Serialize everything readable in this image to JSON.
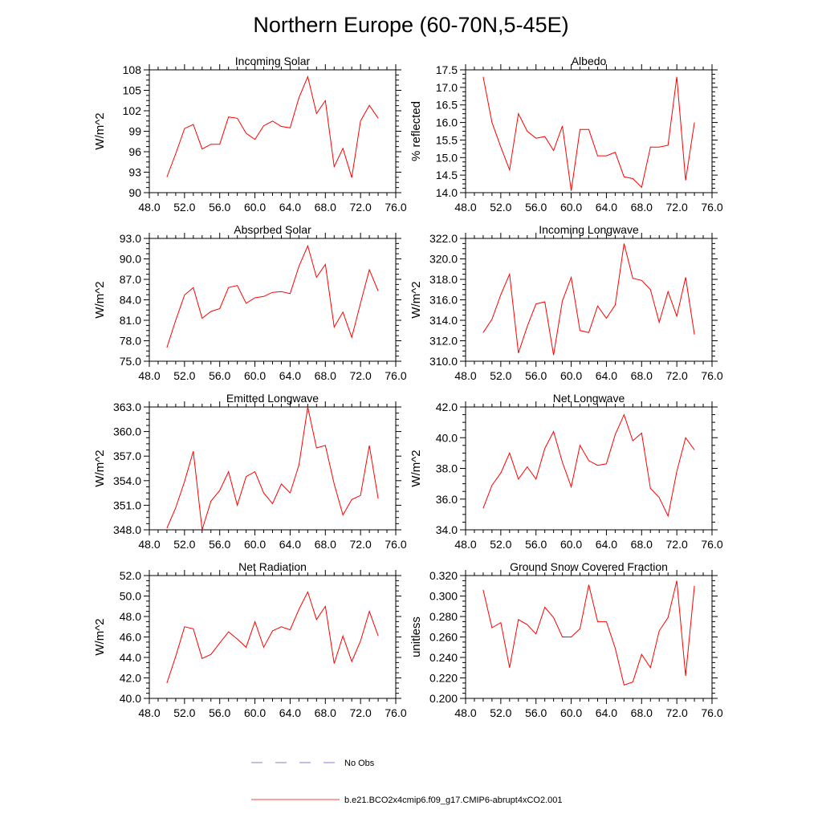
{
  "figure": {
    "title": "Northern Europe (60-70N,5-45E)",
    "line_color": "#ff0000",
    "obs_color": "#5a5ad6"
  },
  "legend": {
    "obs_label": "No Obs",
    "model_label": "b.e21.BCO2x4cmip6.f09_g17.CMIP6-abrupt4xCO2.001"
  },
  "chart_data": [
    {
      "type": "line",
      "title": "Incoming Solar",
      "ylabel": "W/m^2",
      "xlim": [
        48,
        76
      ],
      "ylim": [
        90,
        108
      ],
      "xticks": [
        48,
        52,
        56,
        60,
        64,
        68,
        72,
        76
      ],
      "xtick_labels": [
        "48.0",
        "52.0",
        "56.0",
        "60.0",
        "64.0",
        "68.0",
        "72.0",
        "76.0"
      ],
      "yticks": [
        90,
        93,
        96,
        99,
        102,
        105,
        108
      ],
      "ytick_labels": [
        "90",
        "93",
        "96",
        "99",
        "102",
        "105",
        "108"
      ],
      "x": [
        50,
        51,
        52,
        53,
        54,
        55,
        56,
        57,
        58,
        59,
        60,
        61,
        62,
        63,
        64,
        65,
        66,
        67,
        68,
        69,
        70,
        71,
        72,
        73,
        74
      ],
      "values": [
        92.3,
        95.7,
        99.4,
        100.0,
        96.4,
        97.1,
        97.1,
        101.1,
        100.9,
        98.7,
        97.8,
        99.8,
        100.5,
        99.7,
        99.5,
        103.9,
        107.0,
        101.6,
        103.5,
        93.8,
        96.5,
        92.2,
        100.5,
        102.8,
        100.9
      ]
    },
    {
      "type": "line",
      "title": "Albedo",
      "ylabel": "% reflected",
      "xlim": [
        48,
        76
      ],
      "ylim": [
        14.0,
        17.5
      ],
      "xticks": [
        48,
        52,
        56,
        60,
        64,
        68,
        72,
        76
      ],
      "xtick_labels": [
        "48.0",
        "52.0",
        "56.0",
        "60.0",
        "64.0",
        "68.0",
        "72.0",
        "76.0"
      ],
      "yticks": [
        14.0,
        14.5,
        15.0,
        15.5,
        16.0,
        16.5,
        17.0,
        17.5
      ],
      "ytick_labels": [
        "14.0",
        "14.5",
        "15.0",
        "15.5",
        "16.0",
        "16.5",
        "17.0",
        "17.5"
      ],
      "x": [
        50,
        51,
        52,
        53,
        54,
        55,
        56,
        57,
        58,
        59,
        60,
        61,
        62,
        63,
        64,
        65,
        66,
        67,
        68,
        69,
        70,
        71,
        72,
        73,
        74
      ],
      "values": [
        17.3,
        16.0,
        15.3,
        14.65,
        16.25,
        15.75,
        15.55,
        15.6,
        15.2,
        15.9,
        14.05,
        15.8,
        15.8,
        15.05,
        15.05,
        15.15,
        14.45,
        14.4,
        14.15,
        15.3,
        15.3,
        15.35,
        17.3,
        14.35,
        16.0
      ]
    },
    {
      "type": "line",
      "title": "Absorbed Solar",
      "ylabel": "W/m^2",
      "xlim": [
        48,
        76
      ],
      "ylim": [
        75,
        93
      ],
      "xticks": [
        48,
        52,
        56,
        60,
        64,
        68,
        72,
        76
      ],
      "xtick_labels": [
        "48.0",
        "52.0",
        "56.0",
        "60.0",
        "64.0",
        "68.0",
        "72.0",
        "76.0"
      ],
      "yticks": [
        75,
        78,
        81,
        84,
        87,
        90,
        93
      ],
      "ytick_labels": [
        "75.0",
        "78.0",
        "81.0",
        "84.0",
        "87.0",
        "90.0",
        "93.0"
      ],
      "x": [
        50,
        51,
        52,
        53,
        54,
        55,
        56,
        57,
        58,
        59,
        60,
        61,
        62,
        63,
        64,
        65,
        66,
        67,
        68,
        69,
        70,
        71,
        72,
        73,
        74
      ],
      "values": [
        77.0,
        81.0,
        84.7,
        85.8,
        81.3,
        82.3,
        82.7,
        85.8,
        86.1,
        83.5,
        84.3,
        84.5,
        85.1,
        85.2,
        84.9,
        88.9,
        91.9,
        87.3,
        89.2,
        80.0,
        82.2,
        78.5,
        83.5,
        88.4,
        85.3
      ]
    },
    {
      "type": "line",
      "title": "Incoming Longwave",
      "ylabel": "W/m^2",
      "xlim": [
        48,
        76
      ],
      "ylim": [
        310,
        322
      ],
      "xticks": [
        48,
        52,
        56,
        60,
        64,
        68,
        72,
        76
      ],
      "xtick_labels": [
        "48.0",
        "52.0",
        "56.0",
        "60.0",
        "64.0",
        "68.0",
        "72.0",
        "76.0"
      ],
      "yticks": [
        310,
        312,
        314,
        316,
        318,
        320,
        322
      ],
      "ytick_labels": [
        "310.0",
        "312.0",
        "314.0",
        "316.0",
        "318.0",
        "320.0",
        "322.0"
      ],
      "x": [
        50,
        51,
        52,
        53,
        54,
        55,
        56,
        57,
        58,
        59,
        60,
        61,
        62,
        63,
        64,
        65,
        66,
        67,
        68,
        69,
        70,
        71,
        72,
        73,
        74
      ],
      "values": [
        312.8,
        314.1,
        316.5,
        318.5,
        310.8,
        313.4,
        315.6,
        315.8,
        310.6,
        315.9,
        318.2,
        313.0,
        312.8,
        315.4,
        314.2,
        315.5,
        321.5,
        318.1,
        317.9,
        317.0,
        313.8,
        316.8,
        314.4,
        318.2,
        312.6
      ]
    },
    {
      "type": "line",
      "title": "Emitted Longwave",
      "ylabel": "W/m^2",
      "xlim": [
        48,
        76
      ],
      "ylim": [
        348,
        363
      ],
      "xticks": [
        48,
        52,
        56,
        60,
        64,
        68,
        72,
        76
      ],
      "xtick_labels": [
        "48.0",
        "52.0",
        "56.0",
        "60.0",
        "64.0",
        "68.0",
        "72.0",
        "76.0"
      ],
      "yticks": [
        348,
        351,
        354,
        357,
        360,
        363
      ],
      "ytick_labels": [
        "348.0",
        "351.0",
        "354.0",
        "357.0",
        "360.0",
        "363.0"
      ],
      "x": [
        50,
        51,
        52,
        53,
        54,
        55,
        56,
        57,
        58,
        59,
        60,
        61,
        62,
        63,
        64,
        65,
        66,
        67,
        68,
        69,
        70,
        71,
        72,
        73,
        74
      ],
      "values": [
        348.2,
        350.7,
        353.9,
        357.6,
        348.0,
        351.5,
        352.8,
        355.1,
        351.0,
        354.5,
        355.1,
        352.5,
        351.2,
        353.6,
        352.5,
        355.9,
        363.0,
        358.0,
        358.3,
        353.6,
        349.8,
        351.7,
        352.2,
        358.3,
        351.8
      ]
    },
    {
      "type": "line",
      "title": "Net Longwave",
      "ylabel": "W/m^2",
      "xlim": [
        48,
        76
      ],
      "ylim": [
        34,
        42
      ],
      "xticks": [
        48,
        52,
        56,
        60,
        64,
        68,
        72,
        76
      ],
      "xtick_labels": [
        "48.0",
        "52.0",
        "56.0",
        "60.0",
        "64.0",
        "68.0",
        "72.0",
        "76.0"
      ],
      "yticks": [
        34,
        36,
        38,
        40,
        42
      ],
      "ytick_labels": [
        "34.0",
        "36.0",
        "38.0",
        "40.0",
        "42.0"
      ],
      "x": [
        50,
        51,
        52,
        53,
        54,
        55,
        56,
        57,
        58,
        59,
        60,
        61,
        62,
        63,
        64,
        65,
        66,
        67,
        68,
        69,
        70,
        71,
        72,
        73,
        74
      ],
      "values": [
        35.4,
        36.9,
        37.7,
        39.0,
        37.3,
        38.1,
        37.3,
        39.3,
        40.4,
        38.4,
        36.8,
        39.5,
        38.5,
        38.2,
        38.3,
        40.2,
        41.5,
        39.8,
        40.3,
        36.7,
        36.1,
        34.9,
        37.8,
        40.0,
        39.2
      ]
    },
    {
      "type": "line",
      "title": "Net Radiation",
      "ylabel": "W/m^2",
      "xlim": [
        48,
        76
      ],
      "ylim": [
        40,
        52
      ],
      "xticks": [
        48,
        52,
        56,
        60,
        64,
        68,
        72,
        76
      ],
      "xtick_labels": [
        "48.0",
        "52.0",
        "56.0",
        "60.0",
        "64.0",
        "68.0",
        "72.0",
        "76.0"
      ],
      "yticks": [
        40,
        42,
        44,
        46,
        48,
        50,
        52
      ],
      "ytick_labels": [
        "40.0",
        "42.0",
        "44.0",
        "46.0",
        "48.0",
        "50.0",
        "52.0"
      ],
      "x": [
        50,
        51,
        52,
        53,
        54,
        55,
        56,
        57,
        58,
        59,
        60,
        61,
        62,
        63,
        64,
        65,
        66,
        67,
        68,
        69,
        70,
        71,
        72,
        73,
        74
      ],
      "values": [
        41.5,
        44.1,
        47.0,
        46.8,
        43.9,
        44.3,
        45.4,
        46.5,
        45.8,
        45.0,
        47.5,
        45.0,
        46.6,
        47.0,
        46.7,
        48.7,
        50.4,
        47.7,
        49.0,
        43.4,
        46.1,
        43.6,
        45.6,
        48.5,
        46.1
      ]
    },
    {
      "type": "line",
      "title": "Ground Snow Covered Fraction",
      "ylabel": "unitless",
      "xlim": [
        48,
        76
      ],
      "ylim": [
        0.2,
        0.32
      ],
      "xticks": [
        48,
        52,
        56,
        60,
        64,
        68,
        72,
        76
      ],
      "xtick_labels": [
        "48.0",
        "52.0",
        "56.0",
        "60.0",
        "64.0",
        "68.0",
        "72.0",
        "76.0"
      ],
      "yticks": [
        0.2,
        0.22,
        0.24,
        0.26,
        0.28,
        0.3,
        0.32
      ],
      "ytick_labels": [
        "0.200",
        "0.220",
        "0.240",
        "0.260",
        "0.280",
        "0.300",
        "0.320"
      ],
      "x": [
        50,
        51,
        52,
        53,
        54,
        55,
        56,
        57,
        58,
        59,
        60,
        61,
        62,
        63,
        64,
        65,
        66,
        67,
        68,
        69,
        70,
        71,
        72,
        73,
        74
      ],
      "values": [
        0.306,
        0.269,
        0.274,
        0.23,
        0.277,
        0.272,
        0.263,
        0.289,
        0.279,
        0.26,
        0.26,
        0.268,
        0.311,
        0.275,
        0.275,
        0.249,
        0.213,
        0.216,
        0.243,
        0.23,
        0.266,
        0.279,
        0.315,
        0.222,
        0.31
      ]
    }
  ]
}
